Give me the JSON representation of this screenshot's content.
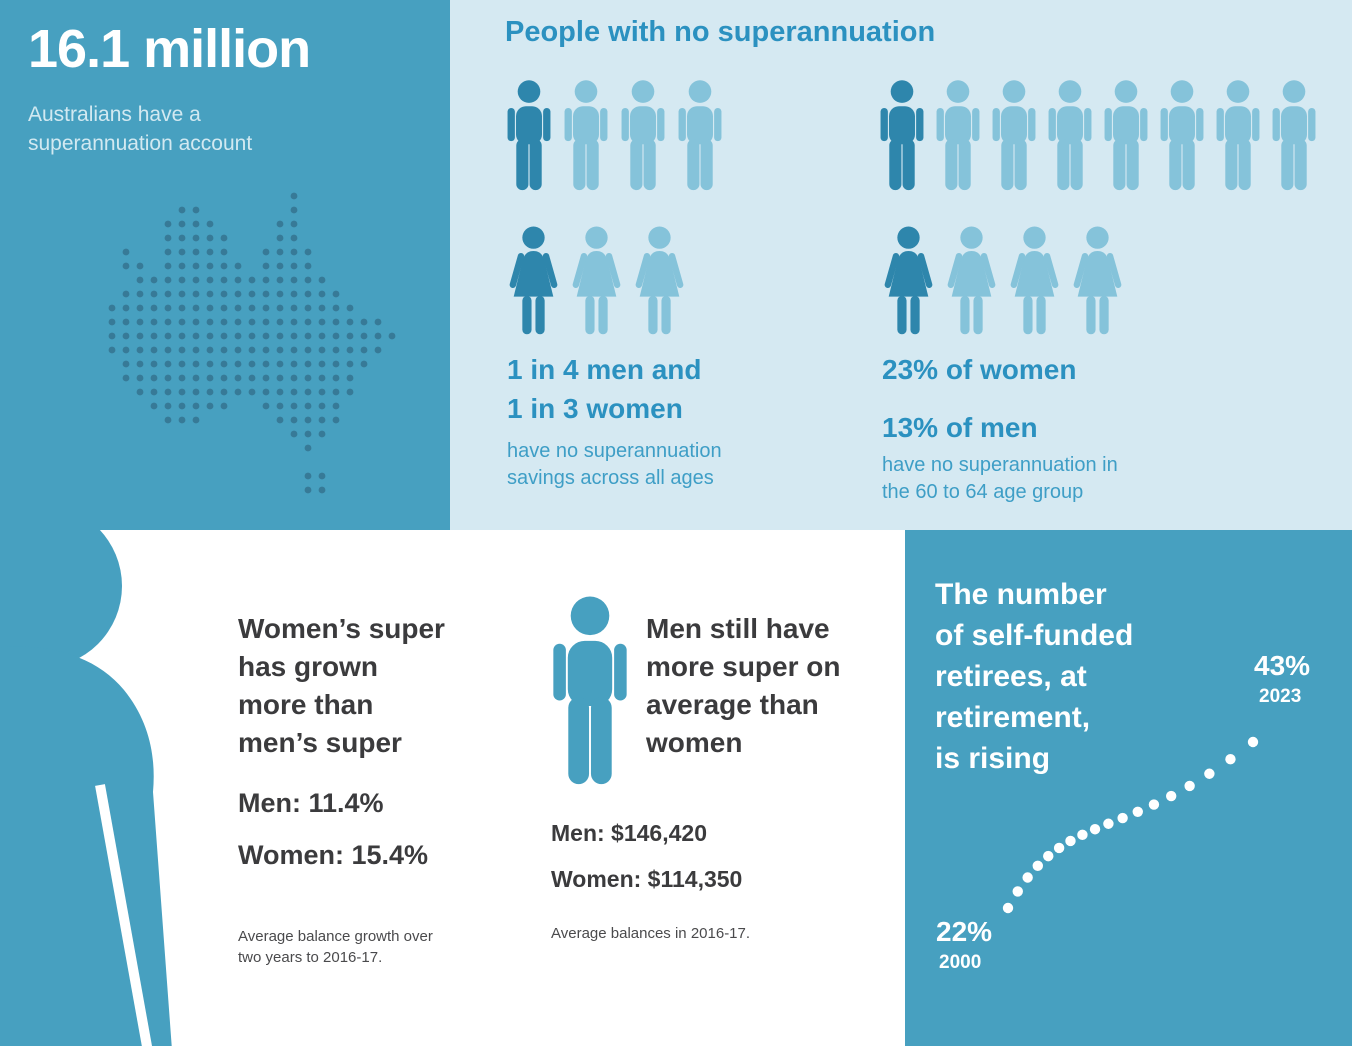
{
  "colors": {
    "teal": "#47A0C0",
    "light_panel": "#D5E9F2",
    "icon_dark": "#2E86AC",
    "icon_light": "#85C3DA",
    "blue_heading": "#2B91C0",
    "blue_caption": "#3E9EC6",
    "pale_text": "#D2E9F1",
    "dark_text": "#3B3B3D",
    "map_dot": "#33708C"
  },
  "icons": {
    "male_pictogram": "male-person-icon",
    "female_pictogram": "female-person-icon",
    "map": "australia-dot-map-icon",
    "trend": "dotted-rising-trend-icon"
  },
  "top_left": {
    "headline": "16.1 million",
    "subtitle": "Australians have a\nsuperannuation account"
  },
  "top_right": {
    "title": "People with no superannuation",
    "group_all_ages": {
      "men_total": 4,
      "men_highlighted": 1,
      "women_total": 3,
      "women_highlighted": 1,
      "stat": "1 in 4 men and\n1 in 3 women",
      "caption": "have no superannuation\nsavings across all ages"
    },
    "group_60_64": {
      "men_total": 8,
      "men_highlighted": 1,
      "women_total": 4,
      "women_highlighted": 1,
      "stat_women": "23% of women",
      "stat_men": "13% of men",
      "caption": "have no superannuation in\nthe 60 to 64 age group"
    }
  },
  "bottom_left": {
    "heading": "Women’s super\nhas grown\nmore than\nmen’s super",
    "men_stat": "Men: 11.4%",
    "women_stat": "Women: 15.4%",
    "footnote": "Average balance growth over\ntwo years to 2016-17."
  },
  "bottom_middle": {
    "heading": "Men still have\nmore super on\naverage than\nwomen",
    "men_stat": "Men: $146,420",
    "women_stat": "Women: $114,350",
    "footnote": "Average balances in 2016-17."
  },
  "bottom_right": {
    "heading": "The number\nof self-funded\nretirees, at\nretirement,\nis rising",
    "end_value": "43%",
    "end_year": "2023",
    "start_value": "22%",
    "start_year": "2000"
  },
  "chart_data": [
    {
      "type": "pictograph",
      "title": "People with no superannuation",
      "groups": [
        {
          "population": "all ages",
          "series": [
            {
              "name": "men",
              "value": "1 in 4",
              "fraction": 0.25,
              "icons_total": 4,
              "icons_highlighted": 1
            },
            {
              "name": "women",
              "value": "1 in 3",
              "fraction": 0.33,
              "icons_total": 3,
              "icons_highlighted": 1
            }
          ],
          "note": "have no superannuation savings across all ages"
        },
        {
          "population": "60 to 64 age group",
          "series": [
            {
              "name": "women",
              "value": "23%",
              "fraction": 0.23,
              "icons_total": 4,
              "icons_highlighted": 1
            },
            {
              "name": "men",
              "value": "13%",
              "fraction": 0.13,
              "icons_total": 8,
              "icons_highlighted": 1
            }
          ],
          "note": "have no superannuation in the 60 to 64 age group"
        }
      ]
    },
    {
      "type": "bar",
      "title": "Average balance growth over two years to 2016-17",
      "categories": [
        "Men",
        "Women"
      ],
      "values": [
        11.4,
        15.4
      ],
      "unit": "percent"
    },
    {
      "type": "bar",
      "title": "Average balances in 2016-17",
      "categories": [
        "Men",
        "Women"
      ],
      "values": [
        146420,
        114350
      ],
      "unit": "AUD"
    },
    {
      "type": "line",
      "style": "dotted",
      "title": "The number of self-funded retirees, at retirement, is rising",
      "x": [
        2000,
        2023
      ],
      "values": [
        22,
        43
      ],
      "unit": "percent",
      "xlabel": "year",
      "ylabel": "self-funded retirees at retirement",
      "ylim": [
        20,
        45
      ],
      "grid": false,
      "legend": "none"
    }
  ]
}
